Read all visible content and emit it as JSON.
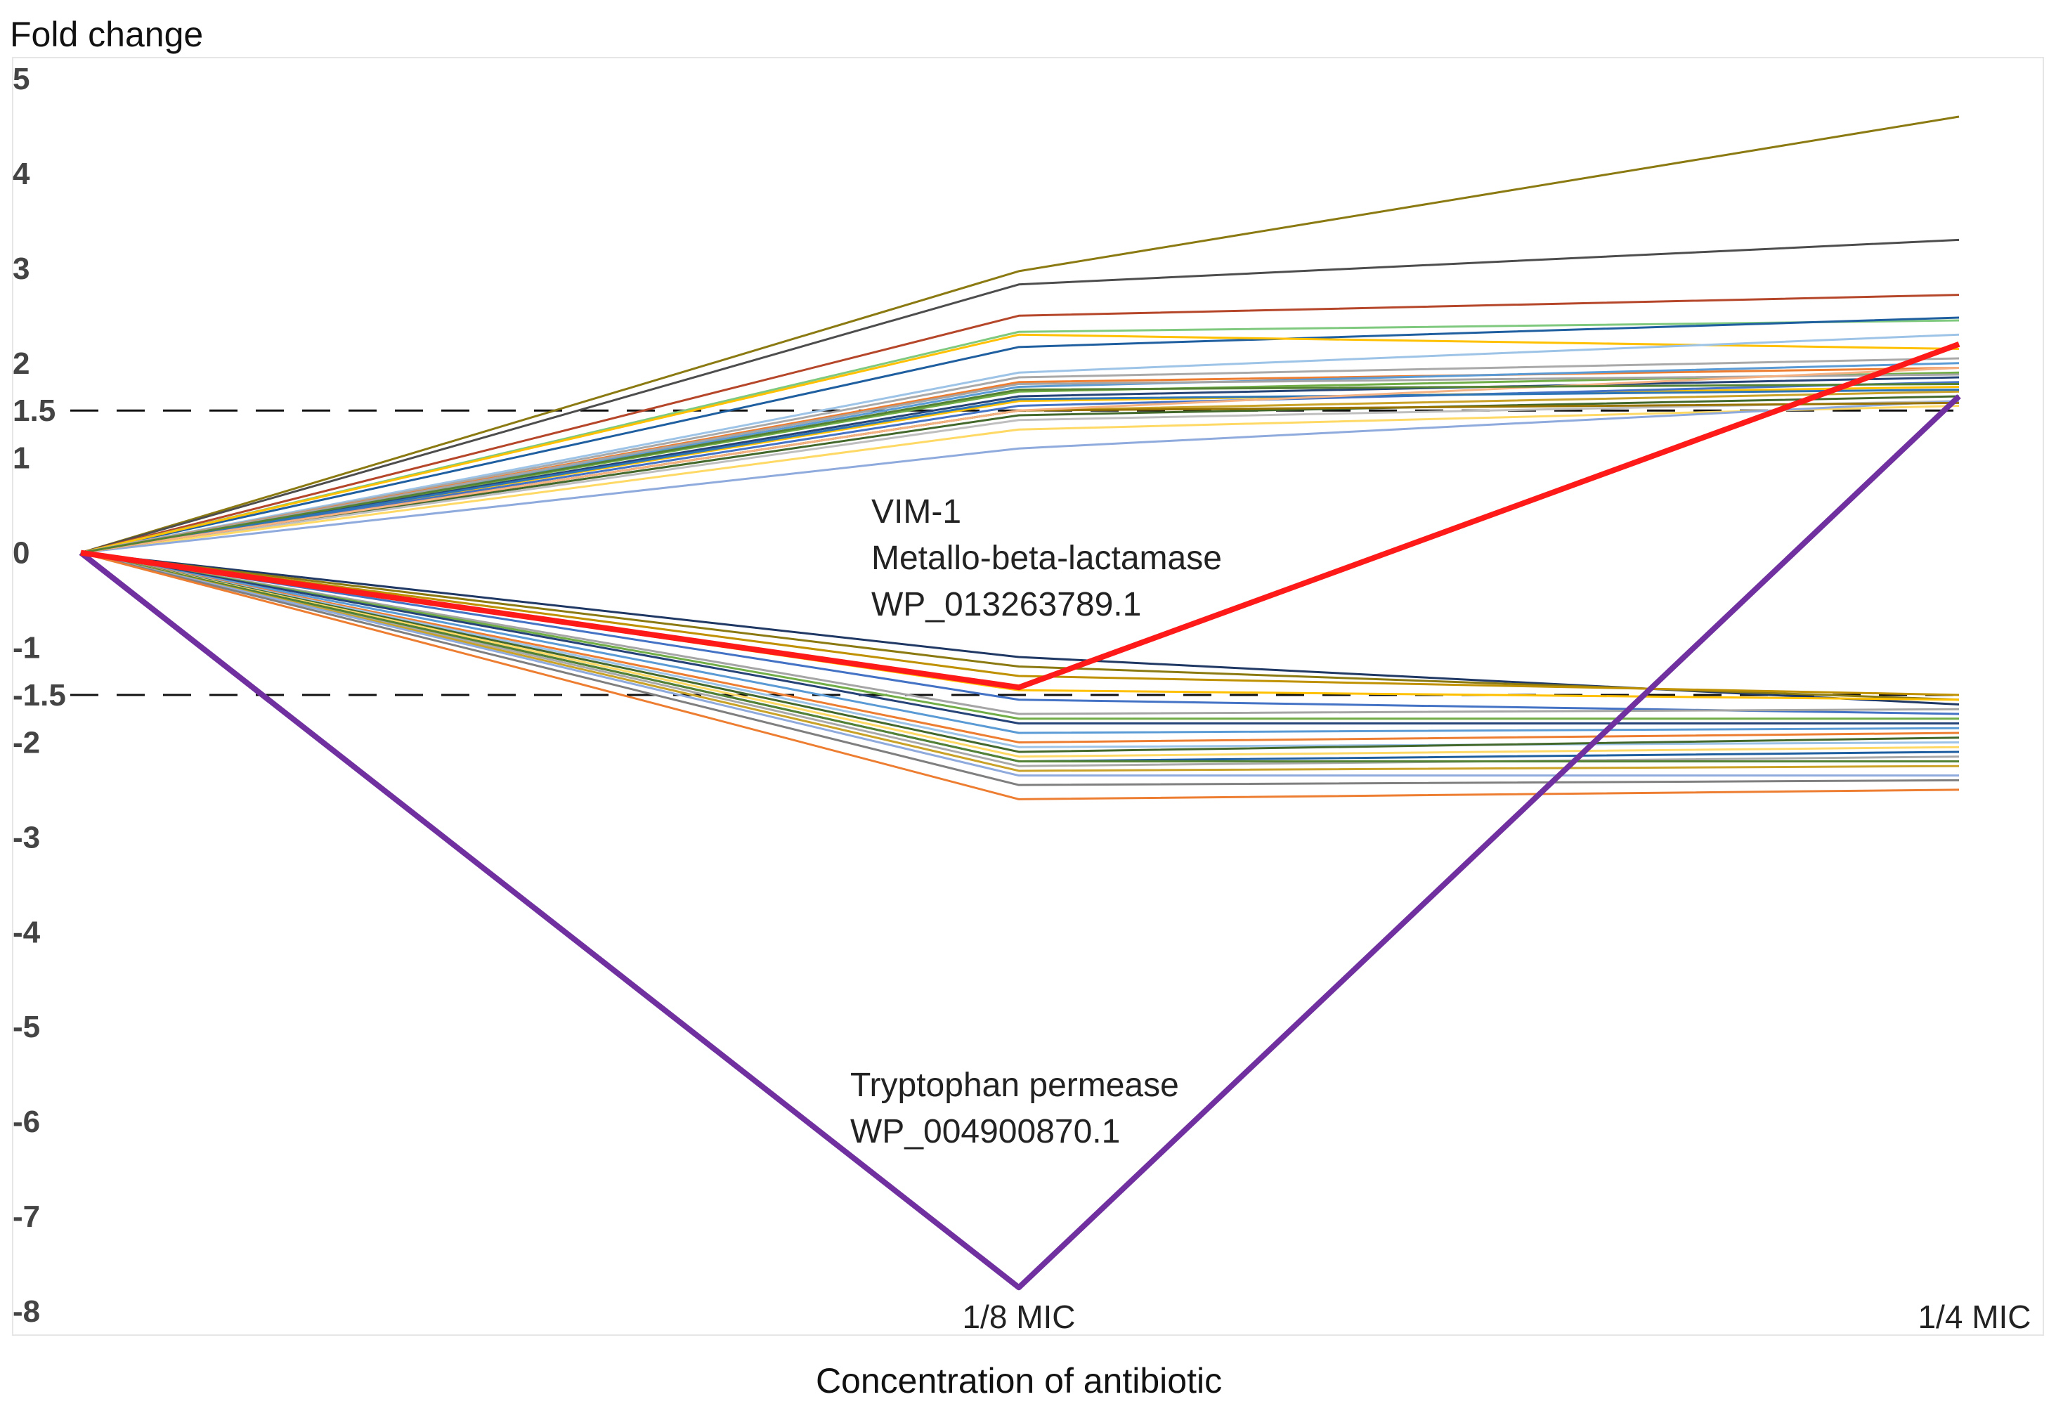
{
  "chart_data": {
    "type": "line",
    "title": "",
    "ylabel": "Fold change",
    "xlabel": "Concentration of antibiotic",
    "ylim": [
      -8,
      5
    ],
    "y_ticks": [
      "5",
      "4",
      "3",
      "2",
      "1.5",
      "1",
      "0",
      "-1",
      "-1.5",
      "-2",
      "-3",
      "-4",
      "-5",
      "-6",
      "-7",
      "-8"
    ],
    "y_tick_values": [
      5,
      4,
      3,
      2,
      1.5,
      1,
      0,
      -1,
      -1.5,
      -2,
      -3,
      -4,
      -5,
      -6,
      -7,
      -8
    ],
    "categories": [
      "",
      "1/8 MIC",
      "1/4 MIC"
    ],
    "thresholds": [
      1.5,
      -1.5
    ],
    "highlight_series": [
      {
        "name": "VIM-1 Metallo-beta-lactamase WP_013263789.1",
        "color": "#ff1a1a",
        "values": [
          0,
          -1.42,
          2.2
        ]
      },
      {
        "name": "Tryptophan permease WP_004900870.1",
        "color": "#7030a0",
        "values": [
          0,
          -7.75,
          1.65
        ]
      }
    ],
    "up_series": [
      {
        "color": "#8b7a12",
        "values": [
          0,
          2.97,
          4.6
        ]
      },
      {
        "color": "#4d4d4d",
        "values": [
          0,
          2.83,
          3.3
        ]
      },
      {
        "color": "#b5462a",
        "values": [
          0,
          2.5,
          2.72
        ]
      },
      {
        "color": "#7fc97f",
        "values": [
          0,
          2.33,
          2.45
        ]
      },
      {
        "color": "#1f5fa0",
        "values": [
          0,
          2.17,
          2.48
        ]
      },
      {
        "color": "#ffc000",
        "values": [
          0,
          2.3,
          2.15
        ]
      },
      {
        "color": "#9dc3e6",
        "values": [
          0,
          1.9,
          2.3
        ]
      },
      {
        "color": "#a9a9a9",
        "values": [
          0,
          1.85,
          2.05
        ]
      },
      {
        "color": "#ed7d31",
        "values": [
          0,
          1.8,
          1.95
        ]
      },
      {
        "color": "#5b9bd5",
        "values": [
          0,
          1.75,
          2.0
        ]
      },
      {
        "color": "#70ad47",
        "values": [
          0,
          1.7,
          1.9
        ]
      },
      {
        "color": "#264478",
        "values": [
          0,
          1.65,
          1.85
        ]
      },
      {
        "color": "#ffc000",
        "values": [
          0,
          1.6,
          1.75
        ]
      },
      {
        "color": "#4472c4",
        "values": [
          0,
          1.55,
          1.8
        ]
      },
      {
        "color": "#c9a227",
        "values": [
          0,
          1.5,
          1.7
        ]
      },
      {
        "color": "#43682b",
        "values": [
          0,
          1.45,
          1.65
        ]
      },
      {
        "color": "#bfbfbf",
        "values": [
          0,
          1.4,
          1.6
        ]
      },
      {
        "color": "#ffd966",
        "values": [
          0,
          1.3,
          1.55
        ]
      },
      {
        "color": "#8faadc",
        "values": [
          0,
          1.1,
          1.6
        ]
      },
      {
        "color": "#997300",
        "values": [
          0,
          1.5,
          1.58
        ]
      },
      {
        "color": "#2e75b6",
        "values": [
          0,
          1.62,
          1.72
        ]
      },
      {
        "color": "#a5a5a5",
        "values": [
          0,
          1.78,
          1.88
        ]
      },
      {
        "color": "#f4b183",
        "values": [
          0,
          1.5,
          1.95
        ]
      },
      {
        "color": "#548235",
        "values": [
          0,
          1.72,
          1.78
        ]
      }
    ],
    "down_series": [
      {
        "color": "#1f3864",
        "values": [
          0,
          -1.1,
          -1.6
        ]
      },
      {
        "color": "#8b7a12",
        "values": [
          0,
          -1.2,
          -1.55
        ]
      },
      {
        "color": "#bf9000",
        "values": [
          0,
          -1.3,
          -1.5
        ]
      },
      {
        "color": "#ffc000",
        "values": [
          0,
          -1.45,
          -1.55
        ]
      },
      {
        "color": "#4472c4",
        "values": [
          0,
          -1.55,
          -1.7
        ]
      },
      {
        "color": "#a5a5a5",
        "values": [
          0,
          -1.7,
          -1.65
        ]
      },
      {
        "color": "#70ad47",
        "values": [
          0,
          -1.75,
          -1.75
        ]
      },
      {
        "color": "#264478",
        "values": [
          0,
          -1.8,
          -1.8
        ]
      },
      {
        "color": "#5b9bd5",
        "values": [
          0,
          -1.9,
          -1.85
        ]
      },
      {
        "color": "#ed7d31",
        "values": [
          0,
          -2.0,
          -1.9
        ]
      },
      {
        "color": "#9dc3e6",
        "values": [
          0,
          -2.05,
          -2.0
        ]
      },
      {
        "color": "#43682b",
        "values": [
          0,
          -2.1,
          -1.95
        ]
      },
      {
        "color": "#ffd966",
        "values": [
          0,
          -2.15,
          -2.05
        ]
      },
      {
        "color": "#1f5fa0",
        "values": [
          0,
          -2.2,
          -2.1
        ]
      },
      {
        "color": "#a9a9a9",
        "values": [
          0,
          -2.25,
          -2.15
        ]
      },
      {
        "color": "#548235",
        "values": [
          0,
          -2.2,
          -2.2
        ]
      },
      {
        "color": "#c9a227",
        "values": [
          0,
          -2.3,
          -2.25
        ]
      },
      {
        "color": "#8faadc",
        "values": [
          0,
          -2.35,
          -2.35
        ]
      },
      {
        "color": "#7f7f7f",
        "values": [
          0,
          -2.45,
          -2.4
        ]
      },
      {
        "color": "#ed7d31",
        "values": [
          0,
          -2.6,
          -2.5
        ]
      }
    ]
  },
  "annotations": {
    "vim_line1": "VIM-1",
    "vim_line2": "Metallo-beta-lactamase",
    "vim_line3": "WP_013263789.1",
    "tryp_line1": "Tryptophan permease",
    "tryp_line2": "WP_004900870.1"
  }
}
